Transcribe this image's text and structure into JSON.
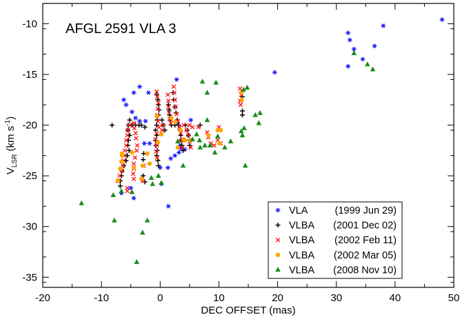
{
  "chart_data": {
    "type": "scatter",
    "title": "AFGL 2591 VLA 3",
    "xlabel": "DEC OFFSET (mas)",
    "ylabel_main": "V",
    "ylabel_sub": "LSR",
    "ylabel_units_open": " (km s",
    "ylabel_units_sup": "-1",
    "ylabel_units_close": ")",
    "xlim": [
      -20,
      50
    ],
    "ylim": [
      -36,
      -8
    ],
    "xticks": [
      -20,
      -10,
      0,
      10,
      20,
      30,
      40,
      50
    ],
    "yticks": [
      -10,
      -15,
      -20,
      -25,
      -30,
      -35
    ],
    "xtick_labels": [
      "-20",
      "-10",
      "0",
      "10",
      "20",
      "30",
      "40",
      "50"
    ],
    "ytick_labels": [
      "-10",
      "-15",
      "-20",
      "-25",
      "-30",
      "-35"
    ],
    "legend_position": "bottom-right",
    "series": [
      {
        "name": "VLA",
        "date": "(1999 Jun 29)",
        "marker": "asterisk",
        "color": "#1a1aff",
        "points": [
          [
            48,
            -9.6
          ],
          [
            38,
            -10.2
          ],
          [
            32,
            -10.9
          ],
          [
            32.3,
            -11.6
          ],
          [
            36.5,
            -12.2
          ],
          [
            33,
            -12.5
          ],
          [
            34.5,
            -13.5
          ],
          [
            32,
            -14.2
          ],
          [
            19.5,
            -14.8
          ],
          [
            2.8,
            -15.5
          ],
          [
            -3.5,
            -16.2
          ],
          [
            -2,
            -16.8
          ],
          [
            -4.5,
            -16.8
          ],
          [
            -6.2,
            -17.5
          ],
          [
            -5.8,
            -18.0
          ],
          [
            -4.8,
            -18.7
          ],
          [
            -4.2,
            -19.3
          ],
          [
            -3.5,
            -19.6
          ],
          [
            -2.5,
            -19.6
          ],
          [
            3.0,
            -19.8
          ],
          [
            5.2,
            -19.5
          ],
          [
            -1.8,
            -21.8
          ],
          [
            -2.7,
            -21.8
          ],
          [
            3.5,
            -22.3
          ],
          [
            4.2,
            -22.4
          ],
          [
            2.5,
            -23.0
          ],
          [
            1.8,
            -23.3
          ],
          [
            3.2,
            -22.7
          ],
          [
            1.3,
            -24.2
          ],
          [
            3.4,
            -22.0
          ],
          [
            0.2,
            -25.8
          ],
          [
            -5.0,
            -26.2
          ],
          [
            -6.6,
            -26.7
          ],
          [
            -4.5,
            -27.2
          ],
          [
            1.4,
            -28.0
          ],
          [
            0,
            -24.2
          ]
        ]
      },
      {
        "name": "VLBA",
        "date": "(2001 Dec 02)",
        "marker": "plus",
        "color": "#000000",
        "points": [
          [
            -8.2,
            -20
          ],
          [
            -5.2,
            -19.5
          ],
          [
            -5.4,
            -20
          ],
          [
            -5.5,
            -20.5
          ],
          [
            -5.2,
            -21
          ],
          [
            -5.4,
            -21.5
          ],
          [
            -5.5,
            -22
          ],
          [
            -5.3,
            -22.5
          ],
          [
            -5.6,
            -23
          ],
          [
            -5.8,
            -23.5
          ],
          [
            -6.2,
            -24
          ],
          [
            -6.5,
            -24.5
          ],
          [
            -6.6,
            -25
          ],
          [
            -6.8,
            -25.5
          ],
          [
            -6.8,
            -26
          ],
          [
            -4.8,
            -20
          ],
          [
            -4.2,
            -20
          ],
          [
            -3.6,
            -20
          ],
          [
            -3.2,
            -20
          ],
          [
            -0.6,
            -17
          ],
          [
            -0.4,
            -17.5
          ],
          [
            -0.3,
            -18
          ],
          [
            -0.2,
            -18.5
          ],
          [
            -0.3,
            -19
          ],
          [
            -0.5,
            -19.5
          ],
          [
            -0.6,
            -20
          ],
          [
            -0.8,
            -20.5
          ],
          [
            -0.6,
            -21
          ],
          [
            -0.8,
            -21.5
          ],
          [
            -0.7,
            -22
          ],
          [
            -0.5,
            -22.5
          ],
          [
            -0.6,
            -23
          ],
          [
            -0.4,
            -23.5
          ],
          [
            -0.3,
            -24
          ],
          [
            0.3,
            -19.5
          ],
          [
            0.5,
            -20
          ],
          [
            0.8,
            -20.5
          ],
          [
            1.4,
            -18
          ],
          [
            1.5,
            -18.5
          ],
          [
            1.6,
            -19
          ],
          [
            1.7,
            -19.5
          ],
          [
            1.9,
            -20
          ],
          [
            2.2,
            -16.8
          ],
          [
            2.3,
            -17.5
          ],
          [
            2.5,
            -18.2
          ],
          [
            2.7,
            -18.8
          ],
          [
            2.9,
            -19.5
          ],
          [
            3.1,
            -20
          ],
          [
            3.4,
            -20.5
          ],
          [
            3.5,
            -21
          ],
          [
            3.6,
            -21.5
          ],
          [
            3.7,
            -22
          ],
          [
            3.9,
            -22.5
          ],
          [
            2.5,
            -20
          ],
          [
            4.3,
            -20
          ],
          [
            4.6,
            -20.5
          ],
          [
            4.8,
            -21
          ],
          [
            5.0,
            -21.5
          ],
          [
            5.0,
            -22
          ],
          [
            6.8,
            -20
          ],
          [
            14,
            -18.6
          ],
          [
            14,
            -17.2
          ],
          [
            13.8,
            -16.8
          ],
          [
            14,
            -19.0
          ],
          [
            -2.6,
            -20.2
          ],
          [
            -2.8,
            -22.8
          ],
          [
            -2.9,
            -23.4
          ],
          [
            -2.9,
            -25.0
          ],
          [
            -2.6,
            -25.6
          ]
        ]
      },
      {
        "name": "VLBA",
        "date": "(2002 Feb 11)",
        "marker": "cross",
        "color": "#ff1a1a",
        "points": [
          [
            -7.2,
            -25.5
          ],
          [
            -6.9,
            -25.0
          ],
          [
            -6.5,
            -24.5
          ],
          [
            -6.3,
            -24.0
          ],
          [
            -6.2,
            -23.5
          ],
          [
            -6.1,
            -23.0
          ],
          [
            -6.0,
            -22.5
          ],
          [
            -5.8,
            -22.0
          ],
          [
            -5.8,
            -21.5
          ],
          [
            -5.6,
            -21.0
          ],
          [
            -5.5,
            -20.5
          ],
          [
            -5.3,
            -20.0
          ],
          [
            -5.6,
            -26.2
          ],
          [
            -5.6,
            -26.5
          ],
          [
            -4.5,
            -25.3
          ],
          [
            -4.6,
            -24.8
          ],
          [
            -4.5,
            -24.3
          ],
          [
            -4.5,
            -23.8
          ],
          [
            -4.3,
            -23.2
          ],
          [
            -4.0,
            -22.5
          ],
          [
            -3.9,
            -22.0
          ],
          [
            -4.1,
            -21.3
          ],
          [
            -4.2,
            -20.8
          ],
          [
            -4.4,
            -20.3
          ],
          [
            -4.5,
            -19.8
          ],
          [
            -2.8,
            -24.0
          ],
          [
            -3.0,
            -25.5
          ],
          [
            -0.6,
            -16.7
          ],
          [
            -0.5,
            -17.2
          ],
          [
            -0.3,
            -17.8
          ],
          [
            -0.4,
            -18.4
          ],
          [
            -0.5,
            -19.0
          ],
          [
            -0.4,
            -19.6
          ],
          [
            -0.2,
            -20.2
          ],
          [
            -0.6,
            -20.8
          ],
          [
            -0.8,
            -21.4
          ],
          [
            -0.6,
            -22.0
          ],
          [
            -0.7,
            -22.6
          ],
          [
            -0.5,
            -23.2
          ],
          [
            0.3,
            -20.5
          ],
          [
            0.5,
            -20.0
          ],
          [
            1.3,
            -17.0
          ],
          [
            1.4,
            -17.6
          ],
          [
            1.4,
            -18.2
          ],
          [
            1.5,
            -18.8
          ],
          [
            1.6,
            -19.4
          ],
          [
            1.8,
            -19.8
          ],
          [
            2.3,
            -16.2
          ],
          [
            2.4,
            -16.8
          ],
          [
            2.5,
            -17.5
          ],
          [
            2.6,
            -18.2
          ],
          [
            2.8,
            -18.9
          ],
          [
            3.0,
            -19.6
          ],
          [
            3.3,
            -20.2
          ],
          [
            3.5,
            -20.8
          ],
          [
            3.6,
            -21.5
          ],
          [
            3.8,
            -22.2
          ],
          [
            4.0,
            -20.0
          ],
          [
            4.5,
            -20.5
          ],
          [
            4.8,
            -21.0
          ],
          [
            5.0,
            -21.6
          ],
          [
            5.2,
            -22.2
          ],
          [
            5.0,
            -20.0
          ],
          [
            5.5,
            -20.2
          ],
          [
            6.5,
            -20.2
          ],
          [
            8.0,
            -20.7
          ],
          [
            8.2,
            -21.2
          ],
          [
            8.6,
            -21.8
          ],
          [
            9.2,
            -22.0
          ],
          [
            9.8,
            -21.5
          ],
          [
            10.0,
            -20.2
          ],
          [
            10.3,
            -21.8
          ],
          [
            13.6,
            -16.4
          ],
          [
            13.8,
            -17.0
          ],
          [
            13.6,
            -17.6
          ],
          [
            13.7,
            -18.0
          ]
        ]
      },
      {
        "name": "VLBA",
        "date": "(2002 Mar 05)",
        "marker": "circle",
        "color": "#ffa500",
        "points": [
          [
            -7.2,
            -25.5
          ],
          [
            -6.8,
            -24.3
          ],
          [
            -6.6,
            -23.6
          ],
          [
            -6.5,
            -23.0
          ],
          [
            -6.5,
            -22.8
          ],
          [
            -4.5,
            -24.2
          ],
          [
            -4.8,
            -22.7
          ],
          [
            -3.0,
            -24.0
          ],
          [
            -2.2,
            -22.8
          ],
          [
            -1.8,
            -23.8
          ],
          [
            -3.2,
            -25.3
          ],
          [
            -0.6,
            -19.1
          ],
          [
            -0.4,
            -21.7
          ],
          [
            0.2,
            -20.9
          ],
          [
            1.9,
            -19.3
          ],
          [
            2.6,
            -19.7
          ],
          [
            3.5,
            -20.5
          ],
          [
            3.0,
            -22.2
          ],
          [
            4.0,
            -21.4
          ],
          [
            4.2,
            -21.5
          ],
          [
            5.1,
            -21.5
          ],
          [
            8.2,
            -21.0
          ],
          [
            9.8,
            -20.5
          ],
          [
            10.3,
            -20.5
          ],
          [
            10.1,
            -21.8
          ],
          [
            13.8,
            -16.8
          ],
          [
            13.9,
            -17.5
          ]
        ]
      },
      {
        "name": "VLBA",
        "date": "(2008 Nov 10)",
        "marker": "triangle",
        "color": "#1a8c1a",
        "points": [
          [
            -13.4,
            -27.7
          ],
          [
            -8,
            -26.9
          ],
          [
            -7.8,
            -29.4
          ],
          [
            -6.6,
            -26.5
          ],
          [
            -4.8,
            -26.6
          ],
          [
            -4,
            -33.5
          ],
          [
            -3,
            -30.6
          ],
          [
            -2.2,
            -29.4
          ],
          [
            -1.5,
            -25.2
          ],
          [
            -1.3,
            -25.8
          ],
          [
            -0.3,
            -25.0
          ],
          [
            0.2,
            -25.7
          ],
          [
            3.0,
            -21.6
          ],
          [
            3.9,
            -24.0
          ],
          [
            5.5,
            -21.4
          ],
          [
            6.2,
            -20.9
          ],
          [
            6.7,
            -21.5
          ],
          [
            6.8,
            -22.2
          ],
          [
            7.6,
            -22.0
          ],
          [
            8.0,
            -19.5
          ],
          [
            8.5,
            -22.0
          ],
          [
            9.3,
            -22.7
          ],
          [
            9.8,
            -21.1
          ],
          [
            7.2,
            -15.7
          ],
          [
            8.0,
            -16.8
          ],
          [
            9.5,
            -15.8
          ],
          [
            11,
            -22.2
          ],
          [
            12,
            -21.6
          ],
          [
            13.8,
            -20.6
          ],
          [
            14.0,
            -21.0
          ],
          [
            14.3,
            -20.3
          ],
          [
            14.2,
            -16.5
          ],
          [
            14.5,
            -24.0
          ],
          [
            16.2,
            -19.0
          ],
          [
            17.0,
            -18.8
          ],
          [
            14.8,
            -16.3
          ],
          [
            33.0,
            -12.9
          ],
          [
            35.3,
            -14.0
          ],
          [
            36.2,
            -14.5
          ],
          [
            16.8,
            -19.8
          ]
        ]
      }
    ]
  }
}
